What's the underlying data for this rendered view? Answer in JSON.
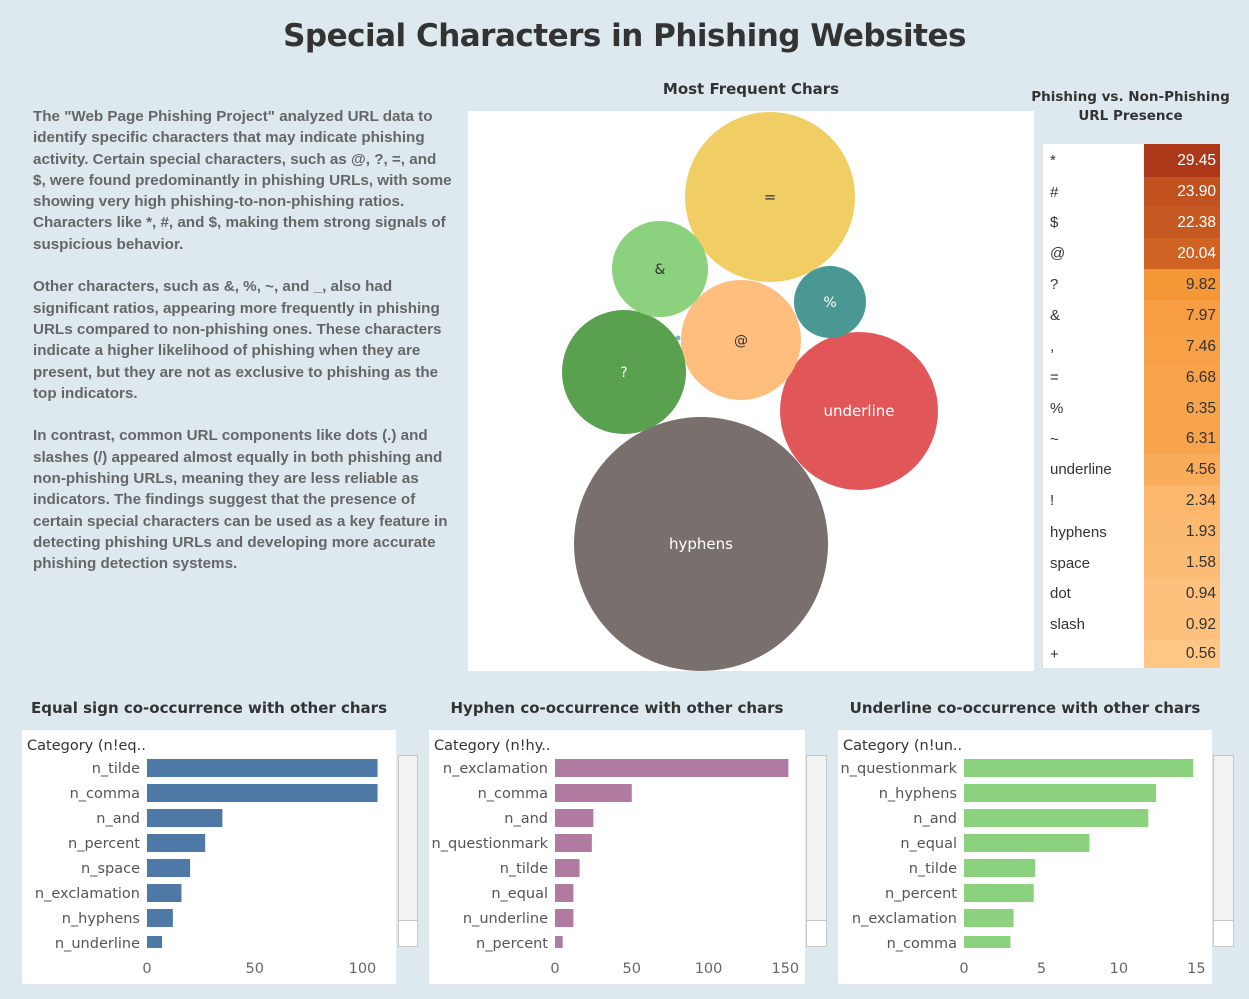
{
  "title": "Special Characters in Phishing Websites",
  "narrative": [
    "The \"Web Page Phishing Project\" analyzed URL data to identify specific characters that may indicate phishing activity. Certain special characters, such as @, ?, =, and $, were found predominantly in phishing URLs, with some showing very high phishing-to-non-phishing ratios. Characters like *, #, and $, making them strong signals of suspicious behavior.",
    "Other characters, such as &, %, ~, and _, also had significant ratios, appearing more frequently in phishing URLs compared to non-phishing ones. These characters indicate a higher likelihood of phishing when they are present, but they are not as exclusive to phishing as the top indicators.",
    "In contrast, common URL components like dots (.) and slashes (/) appeared almost equally in both phishing and non-phishing URLs, meaning they are less reliable as indicators. The findings suggest that the presence of certain special characters can be used as a key feature in detecting phishing URLs and developing more accurate phishing detection systems."
  ],
  "chart_data": [
    {
      "type": "bubble",
      "title": "Most Frequent Chars",
      "bubbles": [
        {
          "label": "hyphens",
          "color": "#79706e",
          "text_color": "#ffffff"
        },
        {
          "label": "=",
          "color": "#f1ce63",
          "text_color": "#333333"
        },
        {
          "label": "underline",
          "color": "#e15759",
          "text_color": "#ffffff"
        },
        {
          "label": "@",
          "color": "#ffbe7d",
          "text_color": "#333333"
        },
        {
          "label": "?",
          "color": "#59a14f",
          "text_color": "#ffffff"
        },
        {
          "label": "&",
          "color": "#8cd17d",
          "text_color": "#333333"
        },
        {
          "label": "%",
          "color": "#499894",
          "text_color": "#ffffff"
        }
      ]
    },
    {
      "type": "table",
      "title": "Phishing vs. Non-Phishing URL Presence",
      "rows": [
        {
          "label": "*",
          "value": 29.45
        },
        {
          "label": "#",
          "value": 23.9
        },
        {
          "label": "$",
          "value": 22.38
        },
        {
          "label": "@",
          "value": 20.04
        },
        {
          "label": "?",
          "value": 9.82
        },
        {
          "label": "&",
          "value": 7.97
        },
        {
          "label": ",",
          "value": 7.46
        },
        {
          "label": "=",
          "value": 6.68
        },
        {
          "label": "%",
          "value": 6.35
        },
        {
          "label": "~",
          "value": 6.31
        },
        {
          "label": "underline",
          "value": 4.56
        },
        {
          "label": "!",
          "value": 2.34
        },
        {
          "label": "hyphens",
          "value": 1.93
        },
        {
          "label": "space",
          "value": 1.58
        },
        {
          "label": "dot",
          "value": 0.94
        },
        {
          "label": "slash",
          "value": 0.92
        },
        {
          "label": "+",
          "value": 0.56
        }
      ],
      "display": [
        "29.45",
        "23.90",
        "22.38",
        "20.04",
        "9.82",
        "7.97",
        "7.46",
        "6.68",
        "6.35",
        "6.31",
        "4.56",
        "2.34",
        "1.93",
        "1.58",
        "0.94",
        "0.92",
        "0.56"
      ]
    },
    {
      "type": "bar",
      "title": "Equal sign co-occurrence with other chars",
      "header": "Category (n!eq..",
      "color": "#4e79a7",
      "categories": [
        "n_tilde",
        "n_comma",
        "n_and",
        "n_percent",
        "n_space",
        "n_exclamation",
        "n_hyphens",
        "n_underline"
      ],
      "values": [
        107,
        107,
        35,
        27,
        20,
        16,
        12,
        7
      ],
      "xlim": [
        0,
        110
      ],
      "ticks": [
        0,
        50,
        100
      ]
    },
    {
      "type": "bar",
      "title": "Hyphen co-occurrence with other chars",
      "header": "Category (n!hy..",
      "color": "#b07aa1",
      "categories": [
        "n_exclamation",
        "n_comma",
        "n_and",
        "n_questionmark",
        "n_tilde",
        "n_equal",
        "n_underline",
        "n_percent"
      ],
      "values": [
        152,
        50,
        25,
        24,
        16,
        12,
        12,
        5
      ],
      "xlim": [
        0,
        155
      ],
      "ticks": [
        0,
        50,
        100,
        150
      ]
    },
    {
      "type": "bar",
      "title": "Underline co-occurrence with other chars",
      "header": "Category (n!un..",
      "color": "#8cd17d",
      "categories": [
        "n_questionmark",
        "n_hyphens",
        "n_and",
        "n_equal",
        "n_tilde",
        "n_percent",
        "n_exclamation",
        "n_comma"
      ],
      "values": [
        14.8,
        12.4,
        11.9,
        8.1,
        4.6,
        4.5,
        3.2,
        3.0
      ],
      "xlim": [
        0,
        15.3
      ],
      "ticks": [
        0,
        5,
        10,
        15
      ]
    }
  ]
}
